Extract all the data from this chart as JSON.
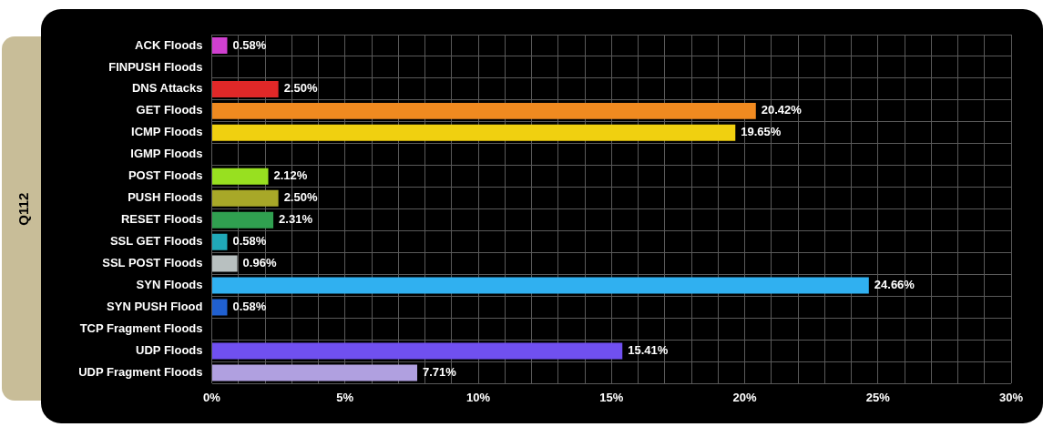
{
  "chart_data": {
    "type": "bar",
    "orientation": "horizontal",
    "ylabel": "Q112",
    "categories": [
      "ACK Floods",
      "FINPUSH Floods",
      "DNS Attacks",
      "GET Floods",
      "ICMP Floods",
      "IGMP Floods",
      "POST Floods",
      "PUSH Floods",
      "RESET Floods",
      "SSL GET Floods",
      "SSL POST Floods",
      "SYN Floods",
      "SYN PUSH Flood",
      "TCP Fragment Floods",
      "UDP Floods",
      "UDP Fragment Floods"
    ],
    "values": [
      0.58,
      null,
      2.5,
      20.42,
      19.65,
      null,
      2.12,
      2.5,
      2.31,
      0.58,
      0.96,
      24.66,
      0.58,
      null,
      15.41,
      7.71
    ],
    "value_labels": [
      "0.58%",
      null,
      "2.50%",
      "20.42%",
      "19.65%",
      null,
      "2.12%",
      "2.50%",
      "2.31%",
      "0.58%",
      "0.96%",
      "24.66%",
      "0.58%",
      null,
      "15.41%",
      "7.71%"
    ],
    "colors": [
      "#d040d0",
      "#808080",
      "#e02828",
      "#f08a20",
      "#f0d010",
      "#808080",
      "#98e020",
      "#a8a828",
      "#30a050",
      "#20a8b8",
      "#b8c0c0",
      "#30b0f0",
      "#2060d0",
      "#808080",
      "#7050f0",
      "#b0a0e0"
    ],
    "xlim": [
      0,
      30
    ],
    "xticks": [
      {
        "value": 0,
        "label": "0%"
      },
      {
        "value": 1,
        "label": null
      },
      {
        "value": 2,
        "label": null
      },
      {
        "value": 3,
        "label": null
      },
      {
        "value": 4,
        "label": null
      },
      {
        "value": 5,
        "label": "5%"
      },
      {
        "value": 6,
        "label": null
      },
      {
        "value": 7,
        "label": null
      },
      {
        "value": 8,
        "label": null
      },
      {
        "value": 9,
        "label": null
      },
      {
        "value": 10,
        "label": "10%"
      },
      {
        "value": 11,
        "label": null
      },
      {
        "value": 12,
        "label": null
      },
      {
        "value": 13,
        "label": null
      },
      {
        "value": 14,
        "label": null
      },
      {
        "value": 15,
        "label": "15%"
      },
      {
        "value": 16,
        "label": null
      },
      {
        "value": 17,
        "label": null
      },
      {
        "value": 18,
        "label": null
      },
      {
        "value": 19,
        "label": null
      },
      {
        "value": 20,
        "label": "20%"
      },
      {
        "value": 21,
        "label": null
      },
      {
        "value": 22,
        "label": null
      },
      {
        "value": 23,
        "label": null
      },
      {
        "value": 24,
        "label": null
      },
      {
        "value": 25,
        "label": "25%"
      },
      {
        "value": 26,
        "label": null
      },
      {
        "value": 27,
        "label": null
      },
      {
        "value": 28,
        "label": null
      },
      {
        "value": 29,
        "label": null
      },
      {
        "value": 30,
        "label": "30%"
      }
    ],
    "grid": true,
    "legend": false
  }
}
